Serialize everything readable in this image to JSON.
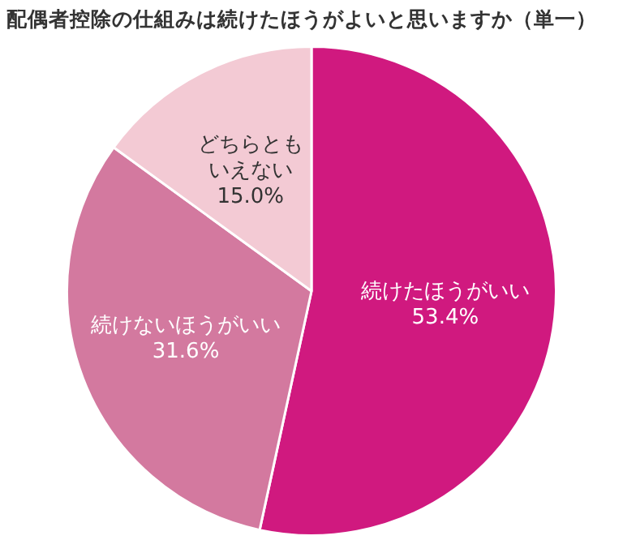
{
  "chart_data": {
    "type": "pie",
    "title": "配偶者控除の仕組みは続けたほうがよいと思いますか（単一）",
    "categories": [
      "続けたほうがいい",
      "続けないほうがいい",
      "どちらともいえない"
    ],
    "values": [
      53.4,
      31.6,
      15.0
    ],
    "value_labels": [
      "53.4%",
      "31.6%",
      "15.0%"
    ],
    "colors": [
      "#d0197f",
      "#d3799f",
      "#f3cad4"
    ],
    "legend": false
  }
}
